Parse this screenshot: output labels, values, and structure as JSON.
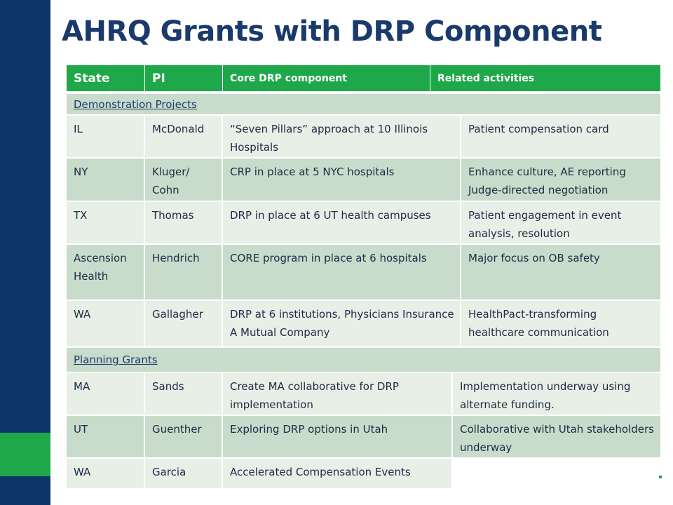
{
  "title": "AHRQ Grants with DRP Component",
  "headers": {
    "state": "State",
    "pi": "PI",
    "core": "Core DRP component",
    "related": "Related activities"
  },
  "sections": {
    "demo": "Demonstration Projects",
    "planning": "Planning Grants"
  },
  "demo_rows": [
    {
      "state": "IL",
      "pi": "McDonald",
      "core": "“Seven Pillars” approach at 10 Illinois Hospitals",
      "related": "Patient compensation card"
    },
    {
      "state": "NY",
      "pi": "Kluger/ Cohn",
      "core": "CRP in place at 5 NYC hospitals",
      "related": "Enhance culture, AE reporting Judge-directed negotiation"
    },
    {
      "state": "TX",
      "pi": "Thomas",
      "core": "DRP in place at 6 UT health campuses",
      "related": "Patient engagement in event analysis, resolution"
    },
    {
      "state": "Ascension Health",
      "pi": "Hendrich",
      "core": "CORE program in place at 6 hospitals",
      "related": "Major focus on OB safety"
    },
    {
      "state": "WA",
      "pi": "Gallagher",
      "core": "DRP at 6 institutions, Physicians Insurance A Mutual Company",
      "related": "HealthPact-transforming healthcare communication"
    }
  ],
  "planning_rows": [
    {
      "state": "MA",
      "pi": "Sands",
      "core": "Create MA collaborative for DRP implementation",
      "related": "Implementation underway using alternate funding."
    },
    {
      "state": "UT",
      "pi": "Guenther",
      "core": "Exploring DRP options in Utah",
      "related": "Collaborative with Utah stakeholders underway"
    },
    {
      "state": "WA",
      "pi": "Garcia",
      "core": "Accelerated Compensation Events",
      "related": ""
    }
  ]
}
